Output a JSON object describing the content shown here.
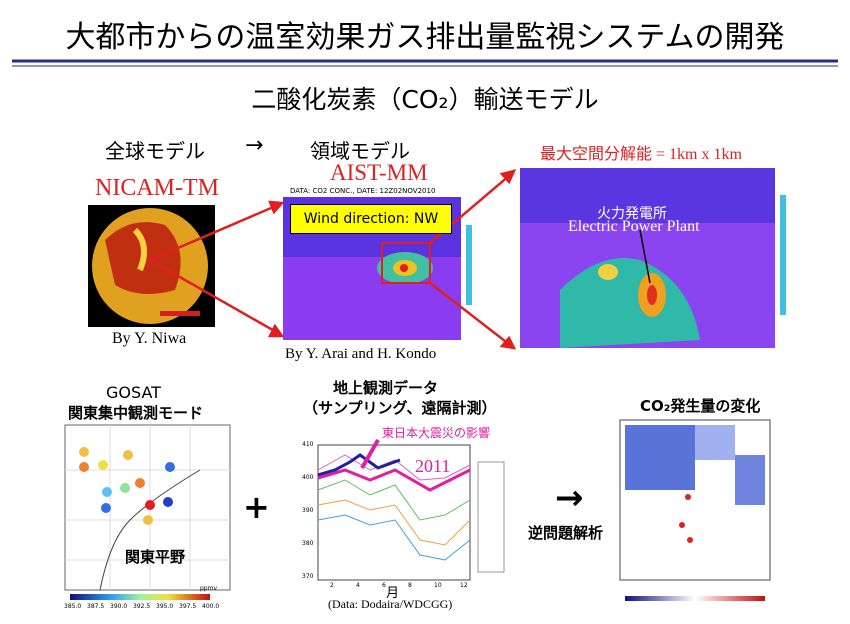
{
  "header": {
    "title": "大都市からの温室効果ガス排出量監視システムの開発",
    "subtitle": "二酸化炭素（CO₂）輸送モデル"
  },
  "models": {
    "global_label": "全球モデル",
    "arrow": "→",
    "regional_label": "領域モデル",
    "global": {
      "name": "NICAM-TM",
      "credit": "By Y. Niwa"
    },
    "regional": {
      "name": "AIST-MM",
      "data_caption": "DATA: CO2 CONC., DATE: 12Z02NOV2010",
      "wind": "Wind direction: NW",
      "credit": "By Y. Arai and H. Kondo"
    },
    "zoom": {
      "resolution": "最大空間分解能 = 1km x 1km",
      "plant_ja": "火力発電所",
      "plant_en": "Electric Power Plant"
    }
  },
  "gosat": {
    "title": "GOSAT",
    "subtitle": "関東集中観測モード",
    "region": "関東平野",
    "colorbar": [
      "385.0",
      "387.5",
      "390.0",
      "392.5",
      "395.0",
      "397.5",
      "400.0"
    ],
    "unit": "ppmv"
  },
  "ground": {
    "title": "地上観測データ",
    "subtitle": "（サンプリング、遠隔計測）",
    "note": "東日本大震災の影響",
    "year": "2011",
    "x_label": "月",
    "source": "(Data: Dodaira/WDCGG)",
    "yticks": [
      "410",
      "400",
      "390",
      "380",
      "370"
    ],
    "xticks": [
      "2",
      "4",
      "6",
      "8",
      "10",
      "12"
    ]
  },
  "plus": "+",
  "inverse": {
    "arrow": "→",
    "label": "逆問題解析"
  },
  "emission": {
    "title": "CO₂発生量の変化"
  }
}
